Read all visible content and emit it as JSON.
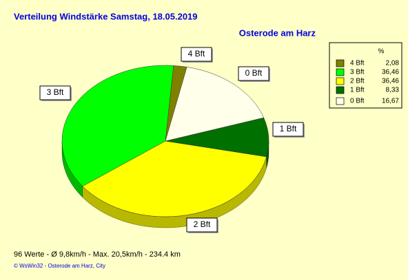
{
  "chart_data": {
    "type": "pie",
    "title": "Verteilung Windstärke  Samstag, 18.05.2019",
    "subtitle": "Osterode am Harz",
    "legend_header": "%",
    "categories": [
      "4 Bft",
      "3 Bft",
      "2 Bft",
      "1 Bft",
      "0 Bft"
    ],
    "values": [
      2.08,
      36.46,
      36.46,
      8.33,
      16.67
    ],
    "value_labels": [
      "2,08",
      "36,46",
      "36,46",
      "8,33",
      "16,67"
    ],
    "colors": [
      "#808000",
      "#00ff00",
      "#ffff00",
      "#007000",
      "#ffffea"
    ]
  },
  "footer": {
    "stats": "96 Werte   -   Ø 9,8km/h  -  Max. 20,5km/h   -   234.4 km",
    "credit": "© WsWin32  -  Osterode am Harz, City"
  }
}
